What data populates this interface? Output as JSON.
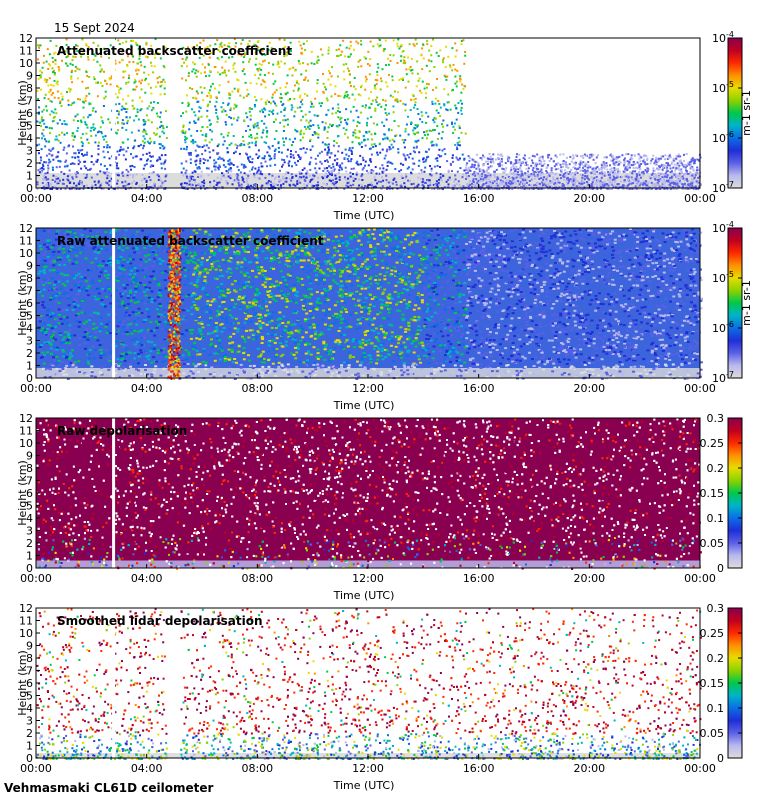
{
  "date": "15 Sept 2024",
  "footer": "Vehmasmaki CL61D ceilometer",
  "colors": {
    "ramp": [
      "#dcdcdc",
      "#b9b9ee",
      "#5a60e6",
      "#1f2fd6",
      "#0a6ee6",
      "#00b4c8",
      "#00c84a",
      "#8cd200",
      "#e6dc00",
      "#ff9000",
      "#ff2a00",
      "#c00020",
      "#8a0050"
    ]
  },
  "chart_data": [
    {
      "type": "heatmap",
      "title": "Attenuated backscatter coefficient",
      "xlabel": "Time (UTC)",
      "ylabel": "Height (km)",
      "x_ticks": [
        "00:00",
        "04:00",
        "08:00",
        "12:00",
        "16:00",
        "20:00",
        "00:00"
      ],
      "y_ticks": [
        "0",
        "1",
        "2",
        "3",
        "4",
        "5",
        "6",
        "7",
        "8",
        "9",
        "10",
        "11",
        "12"
      ],
      "ylim": [
        0,
        12
      ],
      "colorbar": {
        "scale": "log",
        "ticks": [
          {
            "base": "10",
            "exp": "-7"
          },
          {
            "base": "10",
            "exp": "-6"
          },
          {
            "base": "10",
            "exp": "-5"
          },
          {
            "base": "10",
            "exp": "-4"
          }
        ],
        "label": "m-1 sr-1"
      },
      "style": "screened"
    },
    {
      "type": "heatmap",
      "title": "Raw attenuated backscatter coefficient",
      "xlabel": "Time (UTC)",
      "ylabel": "Height (km)",
      "x_ticks": [
        "00:00",
        "04:00",
        "08:00",
        "12:00",
        "16:00",
        "20:00",
        "00:00"
      ],
      "y_ticks": [
        "0",
        "1",
        "2",
        "3",
        "4",
        "5",
        "6",
        "7",
        "8",
        "9",
        "10",
        "11",
        "12"
      ],
      "ylim": [
        0,
        12
      ],
      "colorbar": {
        "scale": "log",
        "ticks": [
          {
            "base": "10",
            "exp": "-7"
          },
          {
            "base": "10",
            "exp": "-6"
          },
          {
            "base": "10",
            "exp": "-5"
          },
          {
            "base": "10",
            "exp": "-4"
          }
        ],
        "label": "m-1 sr-1"
      },
      "style": "raw"
    },
    {
      "type": "heatmap",
      "title": "Raw depolarisation",
      "xlabel": "Time (UTC)",
      "ylabel": "Height (km)",
      "x_ticks": [
        "00:00",
        "04:00",
        "08:00",
        "12:00",
        "16:00",
        "20:00",
        "00:00"
      ],
      "y_ticks": [
        "0",
        "1",
        "2",
        "3",
        "4",
        "5",
        "6",
        "7",
        "8",
        "9",
        "10",
        "11",
        "12"
      ],
      "ylim": [
        0,
        12
      ],
      "colorbar": {
        "scale": "linear",
        "ticks": [
          "0",
          "0.05",
          "0.1",
          "0.15",
          "0.2",
          "0.25",
          "0.3"
        ],
        "vmin": 0,
        "vmax": 0.3
      },
      "style": "depol_raw"
    },
    {
      "type": "heatmap",
      "title": "Smoothed lidar depolarisation",
      "xlabel": "Time (UTC)",
      "ylabel": "Height (km)",
      "x_ticks": [
        "00:00",
        "04:00",
        "08:00",
        "12:00",
        "16:00",
        "20:00",
        "00:00"
      ],
      "y_ticks": [
        "0",
        "1",
        "2",
        "3",
        "4",
        "5",
        "6",
        "7",
        "8",
        "9",
        "10",
        "11",
        "12"
      ],
      "ylim": [
        0,
        12
      ],
      "colorbar": {
        "scale": "linear",
        "ticks": [
          "0",
          "0.05",
          "0.1",
          "0.15",
          "0.2",
          "0.25",
          "0.3"
        ],
        "vmin": 0,
        "vmax": 0.3
      },
      "style": "depol_smooth"
    }
  ]
}
